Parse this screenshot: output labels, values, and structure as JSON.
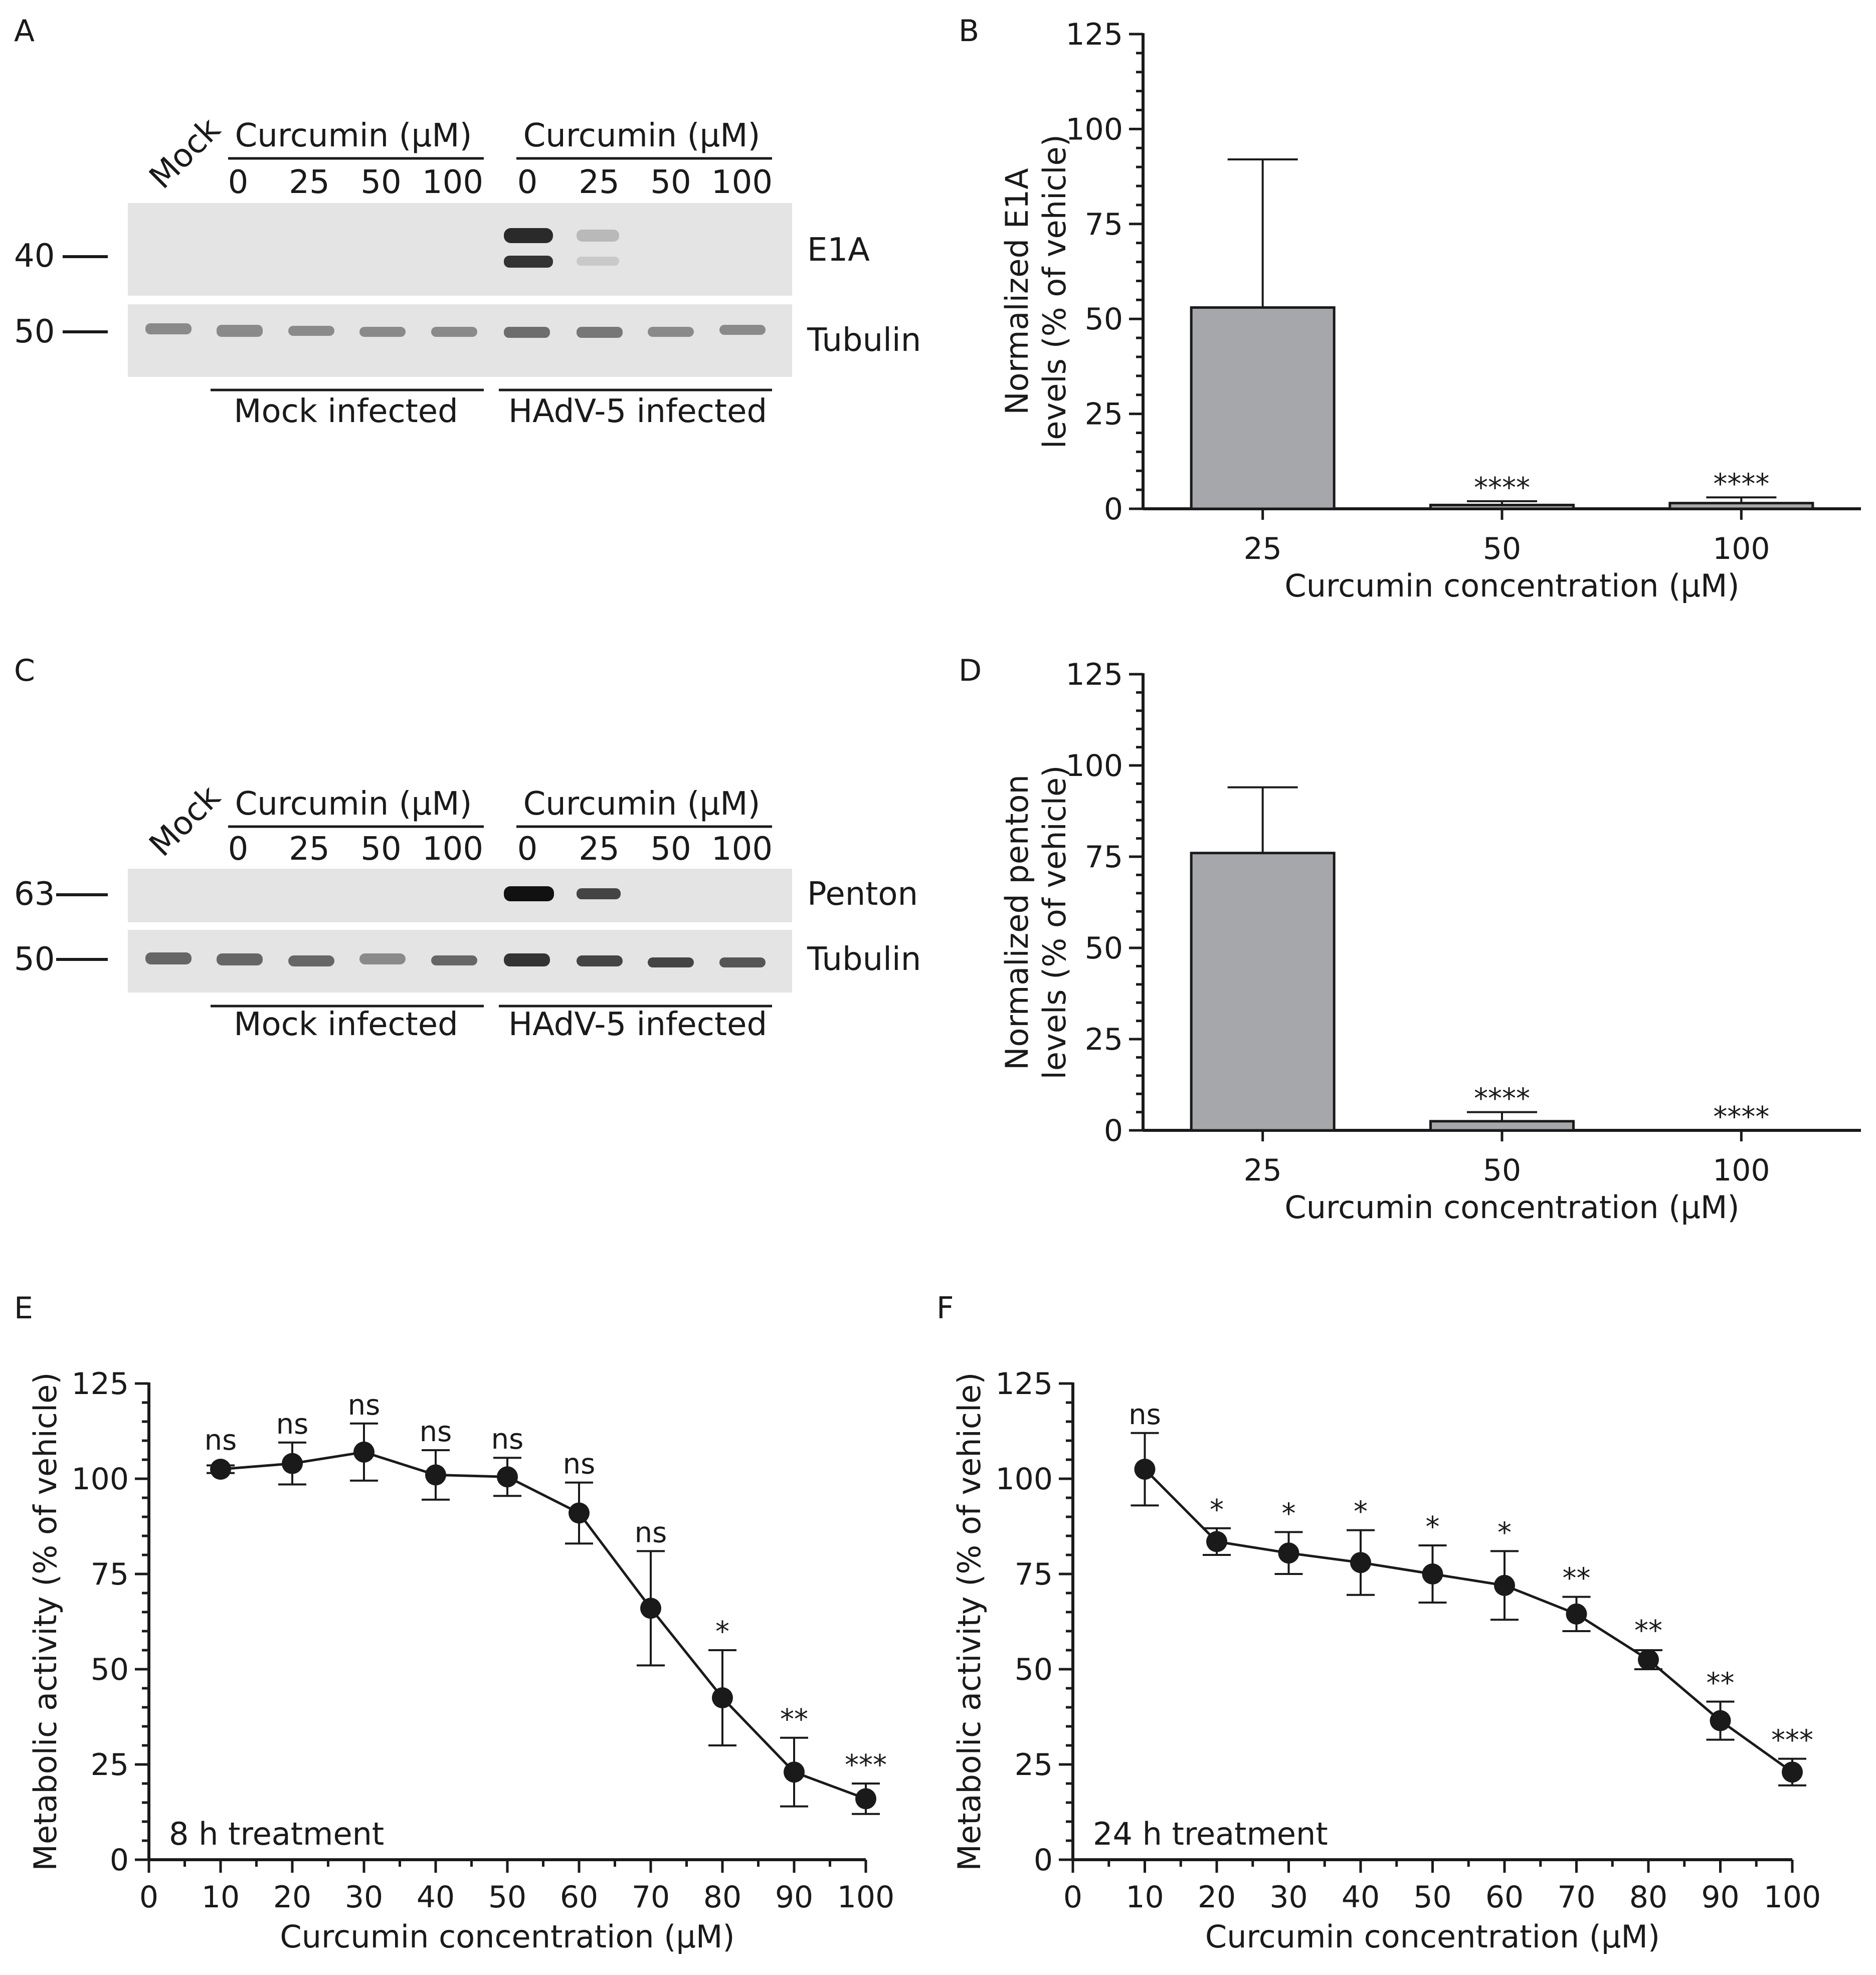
{
  "panels": {
    "A": {
      "label": "A",
      "mock_label": "Mock",
      "group1_header": "Curcumin (μM)",
      "group2_header": "Curcumin (μM)",
      "lanes": [
        "0",
        "25",
        "50",
        "100"
      ],
      "blot_labels": [
        "E1A",
        "Tubulin"
      ],
      "mw_markers": [
        "40",
        "50"
      ],
      "footer": [
        "Mock infected",
        "HAdV-5 infected"
      ]
    },
    "C": {
      "label": "C",
      "mock_label": "Mock",
      "group1_header": "Curcumin (μM)",
      "group2_header": "Curcumin (μM)",
      "lanes": [
        "0",
        "25",
        "50",
        "100"
      ],
      "blot_labels": [
        "Penton",
        "Tubulin"
      ],
      "mw_markers": [
        "63",
        "50"
      ],
      "footer": [
        "Mock infected",
        "HAdV-5 infected"
      ]
    },
    "B_label": "B",
    "D_label": "D",
    "E_label": "E",
    "F_label": "F"
  },
  "colors": {
    "bar_fill": "#a6a7ab",
    "ink": "#1a1a1a",
    "blot_bg": "#e4e4e4",
    "band_dark": "#2a2a2a"
  },
  "chart_data": [
    {
      "id": "B",
      "type": "bar",
      "categories": [
        "25",
        "50",
        "100"
      ],
      "values": [
        53,
        1,
        1.5
      ],
      "errors": [
        39,
        1,
        1.5
      ],
      "significance": [
        "",
        "****",
        "****"
      ],
      "ylabel_line1": "Normalized E1A",
      "ylabel_line2": "levels (% of vehicle)",
      "xlabel": "Curcumin concentration (μM)",
      "ylim": [
        0,
        125
      ],
      "yticks": [
        "0",
        "25",
        "50",
        "75",
        "100",
        "125"
      ]
    },
    {
      "id": "D",
      "type": "bar",
      "categories": [
        "25",
        "50",
        "100"
      ],
      "values": [
        76,
        2.5,
        0
      ],
      "errors": [
        18,
        2.5,
        0
      ],
      "significance": [
        "",
        "****",
        "****"
      ],
      "ylabel_line1": "Normalized penton",
      "ylabel_line2": "levels (% of vehicle)",
      "xlabel": "Curcumin concentration (μM)",
      "ylim": [
        0,
        125
      ],
      "yticks": [
        "0",
        "25",
        "50",
        "75",
        "100",
        "125"
      ]
    },
    {
      "id": "E",
      "type": "line",
      "x": [
        10,
        20,
        30,
        40,
        50,
        60,
        70,
        80,
        90,
        100
      ],
      "y": [
        102.5,
        104,
        107,
        101,
        100.5,
        91,
        66,
        42.5,
        23,
        16
      ],
      "err": [
        1,
        5.5,
        7.5,
        6.5,
        5,
        8,
        15,
        12.5,
        9,
        4
      ],
      "significance": [
        "ns",
        "ns",
        "ns",
        "ns",
        "ns",
        "ns",
        "ns",
        "*",
        "**",
        "***"
      ],
      "annotation": "8 h treatment",
      "ylabel": "Metabolic activity (% of vehicle)",
      "xlabel": "Curcumin concentration (μM)",
      "xlim": [
        0,
        100
      ],
      "ylim": [
        0,
        125
      ],
      "xticks": [
        "0",
        "10",
        "20",
        "30",
        "40",
        "50",
        "60",
        "70",
        "80",
        "90",
        "100"
      ],
      "yticks": [
        "0",
        "25",
        "50",
        "75",
        "100",
        "125"
      ]
    },
    {
      "id": "F",
      "type": "line",
      "x": [
        10,
        20,
        30,
        40,
        50,
        60,
        70,
        80,
        90,
        100
      ],
      "y": [
        102.5,
        83.5,
        80.5,
        78,
        75,
        72,
        64.5,
        52.5,
        36.5,
        23
      ],
      "err": [
        9.5,
        3.5,
        5.5,
        8.5,
        7.5,
        9,
        4.5,
        2.5,
        5,
        3.5
      ],
      "significance": [
        "ns",
        "*",
        "*",
        "*",
        "*",
        "*",
        "**",
        "**",
        "**",
        "***"
      ],
      "annotation": "24 h treatment",
      "ylabel": "Metabolic activity (% of vehicle)",
      "xlabel": "Curcumin concentration (μM)",
      "xlim": [
        0,
        100
      ],
      "ylim": [
        0,
        125
      ],
      "xticks": [
        "0",
        "10",
        "20",
        "30",
        "40",
        "50",
        "60",
        "70",
        "80",
        "90",
        "100"
      ],
      "yticks": [
        "0",
        "25",
        "50",
        "75",
        "100",
        "125"
      ]
    }
  ]
}
